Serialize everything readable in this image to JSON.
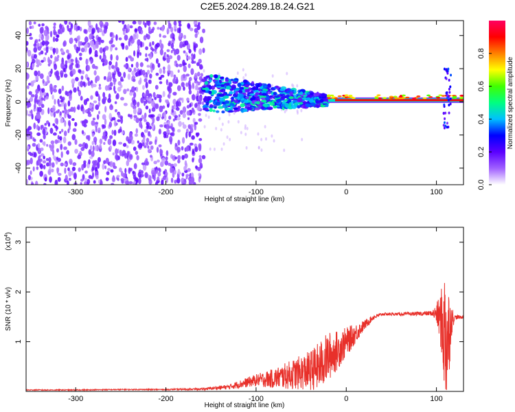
{
  "title": "C2E5.2024.289.18.24.G21",
  "chart_data": [
    {
      "type": "heatmap",
      "xlabel": "Height of straight line (km)",
      "ylabel": "Frequency (Hz)",
      "xlim": [
        -355,
        130
      ],
      "ylim": [
        -50,
        49
      ],
      "x_ticks": [
        "-300",
        "-200",
        "-100",
        "0",
        "100"
      ],
      "y_ticks": [
        "-40",
        "-20",
        "0",
        "20",
        "40"
      ],
      "grid": false,
      "colorbar": {
        "label": "Normalized spectral amplitude",
        "range": [
          0,
          1
        ],
        "ticks": [
          "0.0",
          "0.2",
          "0.4",
          "0.6",
          "0.8"
        ],
        "colors": [
          "#ffffff",
          "#a060ff",
          "#5a00ff",
          "#0000ff",
          "#00c0ff",
          "#00ff80",
          "#40ff00",
          "#ffff00",
          "#ff8000",
          "#ff0000",
          "#ff0060"
        ]
      },
      "regions": [
        {
          "x_range": [
            -355,
            -158
          ],
          "description": "broadband noise",
          "amplitude": 0.1
        },
        {
          "x_range": [
            -158,
            -20
          ],
          "freq_center": 5,
          "amplitude": 0.4
        },
        {
          "x_range": [
            -20,
            130
          ],
          "freq_center": 1,
          "amplitude": 0.9
        }
      ]
    },
    {
      "type": "line",
      "xlabel": "Height of straight line (km)",
      "ylabel": "SNR (10 * v/v)",
      "y_scale_label": "(x10",
      "y_scale_exp": "4",
      "y_scale_suffix": ")",
      "xlim": [
        -355,
        130
      ],
      "ylim": [
        0,
        3.3
      ],
      "x_ticks": [
        "-300",
        "-200",
        "-100",
        "0",
        "100"
      ],
      "y_ticks": [
        "1",
        "2",
        "3"
      ],
      "grid": false,
      "series": [
        {
          "color": "#e8302a",
          "x": [
            -355,
            -300,
            -250,
            -200,
            -160,
            -130,
            -110,
            -100,
            -80,
            -60,
            -40,
            -30,
            -20,
            -10,
            0,
            10,
            20,
            30,
            40,
            60,
            80,
            95,
            100,
            105,
            110,
            113,
            116,
            120,
            130
          ],
          "y": [
            0.03,
            0.03,
            0.04,
            0.04,
            0.05,
            0.1,
            0.2,
            0.25,
            0.3,
            0.4,
            0.5,
            0.6,
            0.8,
            0.9,
            1.05,
            1.2,
            1.35,
            1.5,
            1.56,
            1.56,
            1.57,
            1.58,
            1.6,
            1.55,
            1.4,
            1.3,
            1.5,
            1.5,
            1.5
          ],
          "spread": [
            0.01,
            0.01,
            0.01,
            0.01,
            0.02,
            0.05,
            0.1,
            0.12,
            0.2,
            0.3,
            0.4,
            0.5,
            0.5,
            0.4,
            0.3,
            0.2,
            0.1,
            0.05,
            0.03,
            0.03,
            0.04,
            0.05,
            0.2,
            0.6,
            1.5,
            1.2,
            0.4,
            0.05,
            0.03
          ]
        }
      ]
    }
  ]
}
